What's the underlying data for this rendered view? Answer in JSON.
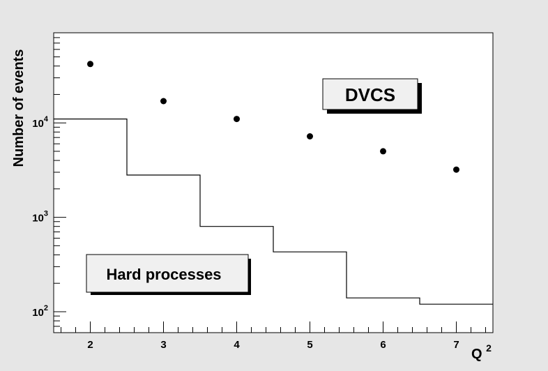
{
  "chart_data": {
    "type": "scatter",
    "ylabel": "Number of events",
    "xlabel_base": "Q",
    "xlabel_sup": "2",
    "xlim": [
      1.5,
      7.5
    ],
    "ylim": [
      60,
      90000
    ],
    "yscale": "log",
    "grid": false,
    "x_ticks": [
      "2",
      "3",
      "4",
      "5",
      "6",
      "7"
    ],
    "y_ticks": [
      {
        "base": "10",
        "exp": "2",
        "value": 100
      },
      {
        "base": "10",
        "exp": "3",
        "value": 1000
      },
      {
        "base": "10",
        "exp": "4",
        "value": 10000
      }
    ],
    "series": [
      {
        "kind": "points",
        "x": [
          2,
          3,
          4,
          5,
          6,
          7
        ],
        "y": [
          42000,
          17000,
          11000,
          7200,
          5000,
          3200
        ]
      },
      {
        "kind": "step-histogram",
        "bin_edges": [
          1.5,
          2.5,
          3.5,
          4.5,
          5.5,
          6.5,
          7.5
        ],
        "values": [
          11000,
          2800,
          800,
          430,
          140,
          120
        ]
      }
    ],
    "annotations": {
      "dvcs": "DVCS",
      "hard": "Hard processes"
    }
  }
}
